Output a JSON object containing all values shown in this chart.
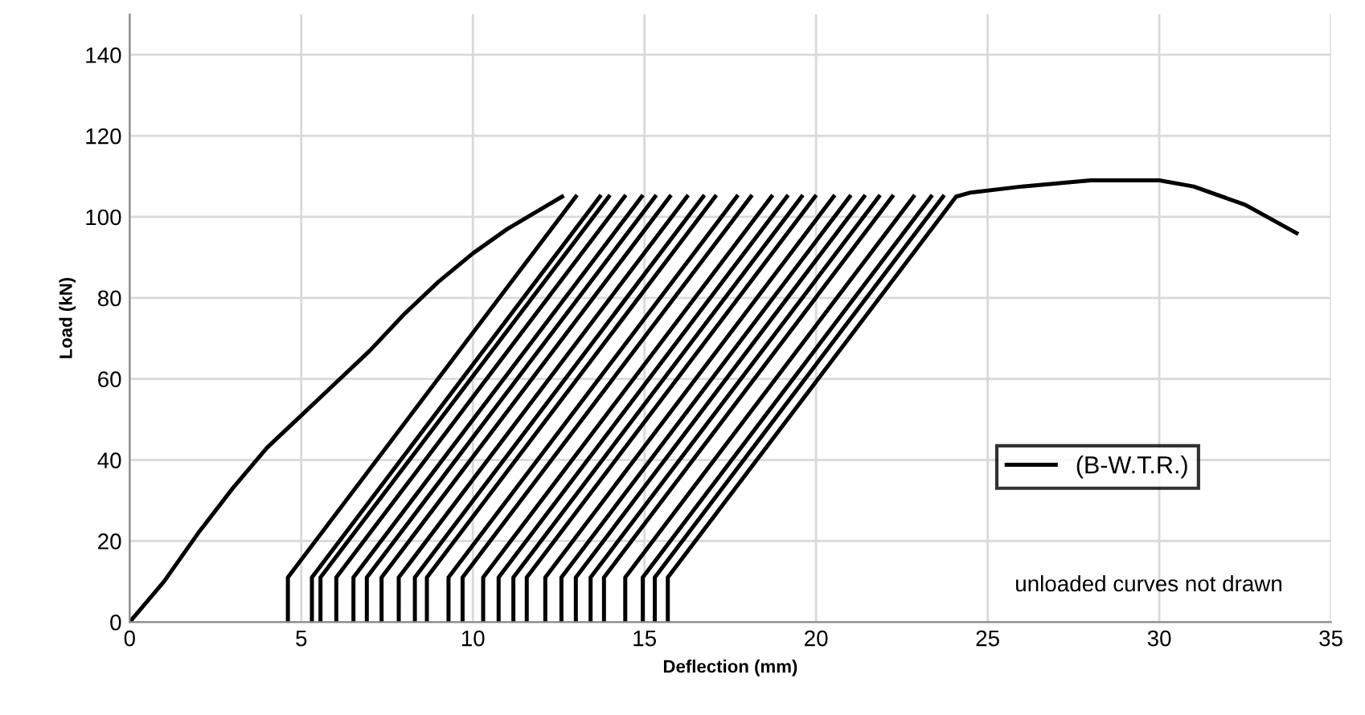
{
  "chart_data": {
    "type": "line",
    "xlabel": "Deflection (mm)",
    "ylabel": "Load (kN)",
    "xlim": [
      0,
      35
    ],
    "ylim": [
      0,
      150
    ],
    "xticks": [
      0,
      5,
      10,
      15,
      20,
      25,
      30,
      35
    ],
    "yticks": [
      0,
      20,
      40,
      60,
      80,
      100,
      120,
      140
    ],
    "grid": true,
    "legend": "bottom right",
    "annotations": [
      "unloaded curves not drawn"
    ],
    "series": [
      {
        "name": "(B-W.T.R.)",
        "color": "#000000",
        "x": [
          0,
          1,
          2,
          3,
          4,
          5,
          6,
          7,
          8,
          9,
          10,
          11,
          12,
          12.6,
          null,
          4.61,
          4.61,
          13.0,
          null,
          5.31,
          5.31,
          13.7,
          null,
          5.56,
          5.56,
          13.96,
          null,
          6.02,
          6.02,
          14.42,
          null,
          6.52,
          6.52,
          14.92,
          null,
          6.91,
          6.91,
          15.31,
          null,
          7.34,
          7.34,
          15.74,
          null,
          7.84,
          7.84,
          16.24,
          null,
          8.31,
          8.31,
          16.71,
          null,
          8.66,
          8.66,
          17.06,
          null,
          9.29,
          9.29,
          17.69,
          null,
          9.7,
          9.7,
          18.1,
          null,
          10.3,
          10.3,
          18.7,
          null,
          10.75,
          10.75,
          19.15,
          null,
          11.18,
          11.18,
          19.58,
          null,
          11.57,
          11.57,
          19.97,
          null,
          12.11,
          12.11,
          20.51,
          null,
          12.58,
          12.58,
          20.98,
          null,
          13.0,
          13.0,
          21.4,
          null,
          13.43,
          13.43,
          21.83,
          null,
          13.82,
          13.82,
          22.22,
          null,
          14.44,
          14.44,
          22.84,
          null,
          14.95,
          14.95,
          23.35,
          null,
          15.3,
          15.3,
          23.7,
          null,
          15.68,
          15.68,
          24.08,
          24.5,
          26,
          28,
          30,
          31,
          32.5,
          34
        ],
        "values": [
          0,
          10,
          22,
          33,
          43,
          51,
          59,
          67,
          76,
          84,
          91,
          97,
          102,
          105,
          null,
          0,
          11,
          105,
          null,
          0,
          11,
          105,
          null,
          0,
          11,
          105,
          null,
          0,
          11,
          105,
          null,
          0,
          11,
          105,
          null,
          0,
          11,
          105,
          null,
          0,
          11,
          105,
          null,
          0,
          11,
          105,
          null,
          0,
          11,
          105,
          null,
          0,
          11,
          105,
          null,
          0,
          11,
          105,
          null,
          0,
          11,
          105,
          null,
          0,
          11,
          105,
          null,
          0,
          11,
          105,
          null,
          0,
          11,
          105,
          null,
          0,
          11,
          105,
          null,
          0,
          11,
          105,
          null,
          0,
          11,
          105,
          null,
          0,
          11,
          105,
          null,
          0,
          11,
          105,
          null,
          0,
          11,
          105,
          null,
          0,
          11,
          105,
          null,
          0,
          11,
          105,
          null,
          0,
          11,
          105,
          null,
          0,
          11,
          105,
          106,
          107.5,
          109,
          109,
          107.5,
          103,
          96
        ]
      }
    ]
  }
}
